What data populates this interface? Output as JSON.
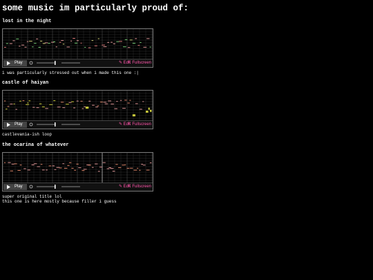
{
  "header": {
    "title": "some music im particularly proud of:"
  },
  "player": {
    "play": "Play",
    "edit": "✎ Edit",
    "fullscreen": "⇱ Fullscreen"
  },
  "sections": [
    {
      "title": "lost in the night",
      "captions": [
        "i was particularly stressed out when i made this one :|"
      ]
    },
    {
      "title": "castle of haiyan",
      "captions": [
        "castlevania-ish loop"
      ]
    },
    {
      "title": "the ocarina of whatever",
      "captions": [
        "super original title lol",
        "this one is here mostly because filler i guess"
      ]
    }
  ]
}
